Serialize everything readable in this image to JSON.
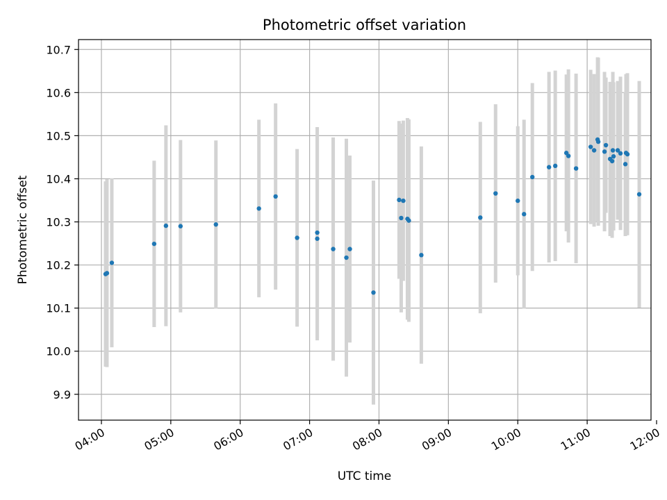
{
  "chart_data": {
    "type": "scatter",
    "title": "Photometric offset variation",
    "xlabel": "UTC time",
    "ylabel": "Photometric offset",
    "x_unit": "hours UTC",
    "xlim": [
      3.67,
      11.92
    ],
    "ylim": [
      9.84,
      10.723
    ],
    "x_ticks": [
      4,
      5,
      6,
      7,
      8,
      9,
      10,
      11,
      12
    ],
    "x_tick_labels": [
      "04:00",
      "05:00",
      "06:00",
      "07:00",
      "08:00",
      "09:00",
      "10:00",
      "11:00",
      "12:00"
    ],
    "y_ticks": [
      9.9,
      10.0,
      10.1,
      10.2,
      10.3,
      10.4,
      10.5,
      10.6,
      10.7
    ],
    "y_tick_labels": [
      "9.9",
      "10.0",
      "10.1",
      "10.2",
      "10.3",
      "10.4",
      "10.5",
      "10.6",
      "10.7"
    ],
    "grid": true,
    "colors": {
      "points": "#1f77b4",
      "errorbars": "#d3d3d3",
      "grid": "#b0b0b0"
    },
    "series": [
      {
        "x": [
          4.06,
          4.08,
          4.15,
          4.76,
          4.93,
          5.14,
          5.65,
          6.27,
          6.51,
          6.82,
          7.11,
          7.11,
          7.34,
          7.53,
          7.58,
          7.92,
          8.29,
          8.32,
          8.35,
          8.41,
          8.43,
          8.61,
          9.46,
          9.68,
          10.0,
          10.09,
          10.21,
          10.45,
          10.54,
          10.7,
          10.73,
          10.84,
          11.05,
          11.1,
          11.15,
          11.16,
          11.25,
          11.27,
          11.33,
          11.36,
          11.37,
          11.38,
          11.44,
          11.48,
          11.55,
          11.56,
          11.58,
          11.75
        ],
        "y": [
          10.179,
          10.181,
          10.205,
          10.249,
          10.291,
          10.29,
          10.294,
          10.331,
          10.359,
          10.263,
          10.275,
          10.261,
          10.237,
          10.217,
          10.237,
          10.136,
          10.351,
          10.309,
          10.349,
          10.307,
          10.303,
          10.223,
          10.31,
          10.366,
          10.349,
          10.318,
          10.404,
          10.427,
          10.43,
          10.46,
          10.453,
          10.424,
          10.474,
          10.466,
          10.491,
          10.486,
          10.463,
          10.478,
          10.446,
          10.441,
          10.466,
          10.452,
          10.466,
          10.459,
          10.434,
          10.46,
          10.457,
          10.364
        ],
        "y_err": [
          0.215,
          0.218,
          0.196,
          0.193,
          0.233,
          0.2,
          0.195,
          0.206,
          0.216,
          0.206,
          0.245,
          0.236,
          0.259,
          0.276,
          0.217,
          0.26,
          0.183,
          0.219,
          0.186,
          0.234,
          0.235,
          0.252,
          0.222,
          0.207,
          0.173,
          0.219,
          0.218,
          0.221,
          0.221,
          0.182,
          0.201,
          0.22,
          0.179,
          0.177,
          0.191,
          0.195,
          0.185,
          0.157,
          0.179,
          0.178,
          0.182,
          0.172,
          0.161,
          0.178,
          0.167,
          0.183,
          0.188,
          0.263
        ]
      }
    ]
  }
}
